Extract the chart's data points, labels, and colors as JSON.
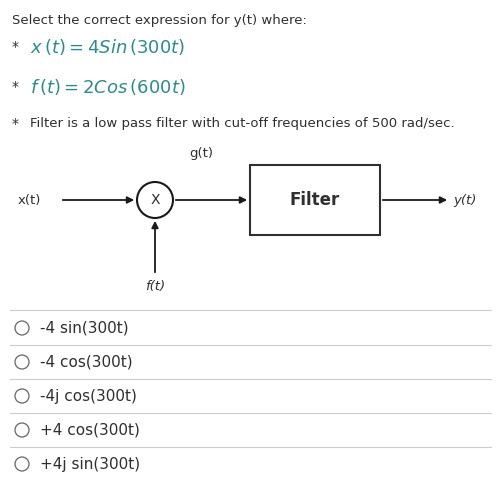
{
  "title": "Select the correct expression for y(t) where:",
  "bullet1_prefix": "*",
  "bullet1_math": "$x\\,(t) = 4Sin\\,(300t)$",
  "bullet2_prefix": "*",
  "bullet2_math": "$f\\,(t) = 2Cos\\,(600t)$",
  "bullet3_prefix": "*",
  "bullet3_text": "Filter is a low pass filter with cut-off frequencies of 500 rad/sec.",
  "label_xt": "x(t)",
  "label_gt": "g(t)",
  "label_filter": "Filter",
  "label_yt": "y(t)",
  "label_ft": "f(t)",
  "options": [
    "-4 sin(300t)",
    "-4 cos(300t)",
    "-4j cos(300t)",
    "+4 cos(300t)",
    "+4j sin(300t)"
  ],
  "bg_color": "#ffffff",
  "text_color": "#2f2f2f",
  "teal_color": "#2E8B8B",
  "title_fontsize": 9.5,
  "bullet_math_fontsize": 13,
  "bullet3_fontsize": 9.5,
  "diagram_fontsize": 9.5,
  "option_fontsize": 11,
  "separator_color": "#cccccc",
  "circle_color": "#1a1a1a",
  "arrow_color": "#1a1a1a"
}
